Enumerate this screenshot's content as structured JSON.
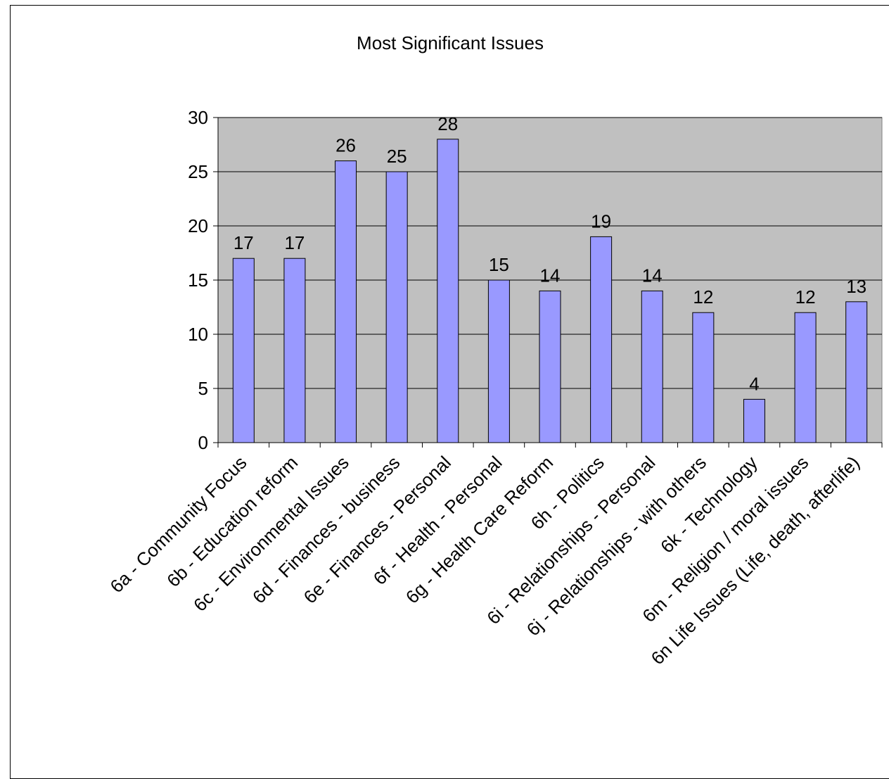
{
  "chart_data": {
    "type": "bar",
    "title": "Most Significant Issues",
    "xlabel": "",
    "ylabel": "",
    "ylim": [
      0,
      30
    ],
    "yticks": [
      0,
      5,
      10,
      15,
      20,
      25,
      30
    ],
    "grid": true,
    "legend": "none",
    "categories": [
      "6a - Community Focus",
      "6b - Education reform",
      "6c - Environmental Issues",
      "6d - Finances - business",
      "6e - Finances - Personal",
      "6f - Health - Personal",
      "6g - Health Care Reform",
      "6h - Politics",
      "6i - Relationships - Personal",
      "6j - Relationships - with others",
      "6k - Technology",
      "6m - Religion / moral issues",
      "6n Life Issues (Life, death, afterlife)"
    ],
    "values": [
      17,
      17,
      26,
      25,
      28,
      15,
      14,
      19,
      14,
      12,
      4,
      12,
      13
    ],
    "colors": {
      "plot_background": "#c0c0c0",
      "bar_fill": "#9999ff",
      "bar_stroke": "#000000",
      "grid": "#000000"
    }
  }
}
